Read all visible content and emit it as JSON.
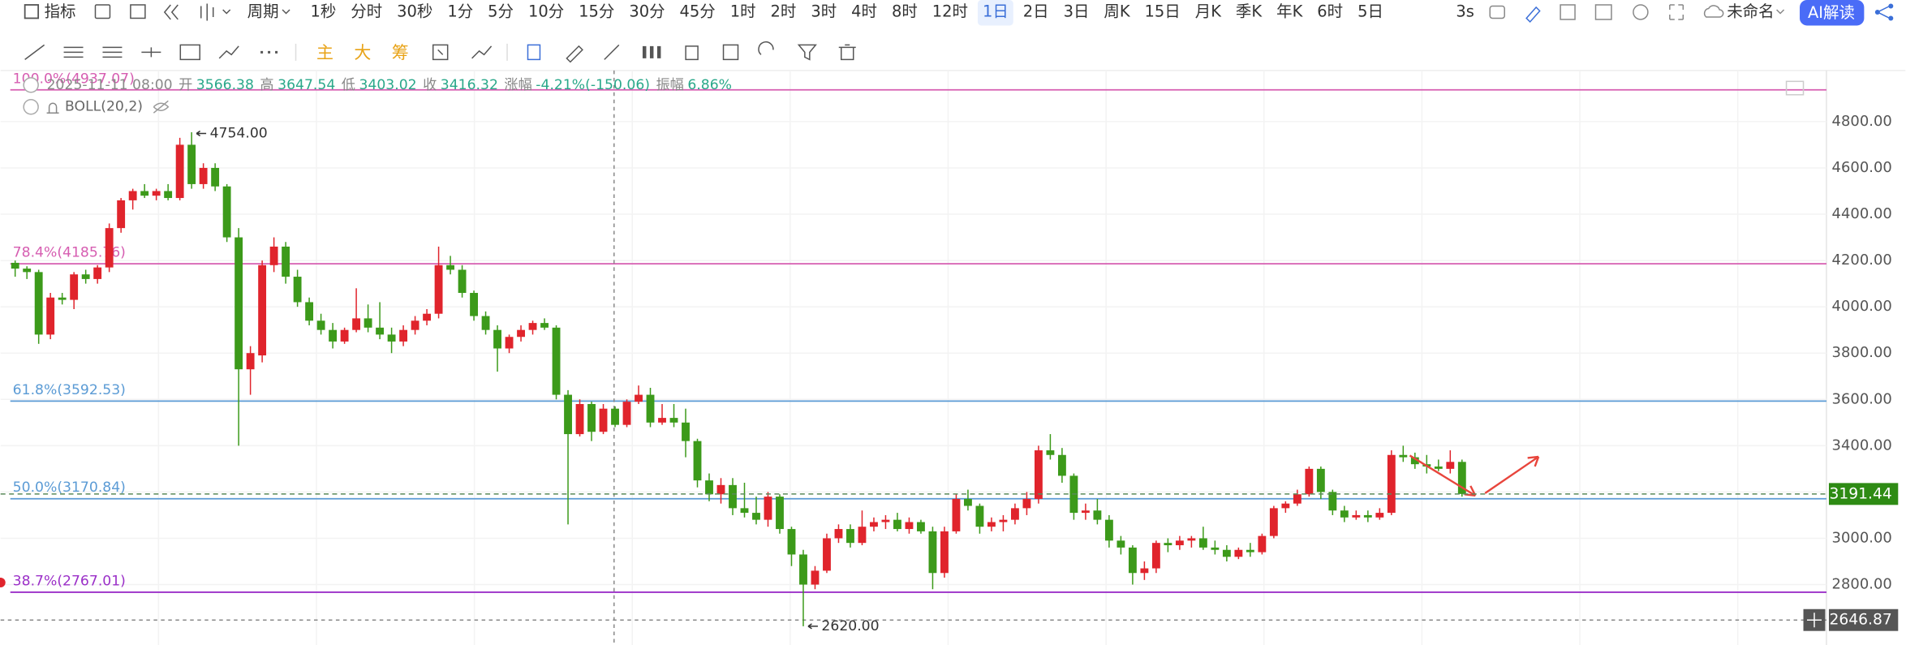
{
  "toolbar": {
    "indicators": "指标",
    "period": "周期",
    "intervals": [
      "1秒",
      "分时",
      "30秒",
      "1分",
      "5分",
      "10分",
      "15分",
      "30分",
      "45分",
      "1时",
      "2时",
      "3时",
      "4时",
      "8时",
      "12时",
      "1日",
      "2日",
      "3日",
      "周K",
      "15日",
      "月K",
      "季K",
      "年K",
      "6时",
      "5日"
    ],
    "active": "1日",
    "refresh": "3s",
    "layout_name": "未命名",
    "ai_button": "AI解读",
    "overlays": [
      "主",
      "大",
      "筹"
    ]
  },
  "chart_data": {
    "type": "candlestick",
    "ylim": [
      2560,
      5000
    ],
    "yticks": [
      {
        "value": 2800,
        "label": "2800.00"
      },
      {
        "value": 3000,
        "label": "3000.00"
      },
      {
        "value": 3200,
        "label": "3200.00"
      },
      {
        "value": 3400,
        "label": "3400.00"
      },
      {
        "value": 3600,
        "label": "3600.00"
      },
      {
        "value": 3800,
        "label": "3800.00"
      },
      {
        "value": 4000,
        "label": "4000.00"
      },
      {
        "value": 4200,
        "label": "4200.00"
      },
      {
        "value": 4400,
        "label": "4400.00"
      },
      {
        "value": 4600,
        "label": "4600.00"
      },
      {
        "value": 4800,
        "label": "4800.00"
      }
    ],
    "grid": true,
    "up_color": "#e0242c",
    "down_color": "#3c9a1a",
    "info": {
      "datetime": "2025-11-11 08:00",
      "fields": [
        {
          "label": "开",
          "value": "3566.38"
        },
        {
          "label": "高",
          "value": "3647.54"
        },
        {
          "label": "低",
          "value": "3403.02"
        },
        {
          "label": "收",
          "value": "3416.32"
        },
        {
          "label": "涨幅",
          "value": "-4.21%(-150.06)"
        },
        {
          "label": "振幅",
          "value": "6.86%"
        }
      ]
    },
    "indicator": "BOLL(20,2)",
    "fib_levels": [
      {
        "value": 4937.07,
        "label": "100.0%(4937.07)",
        "color": "#d65db1"
      },
      {
        "value": 4185.76,
        "label": "78.4%(4185.76)",
        "color": "#d65db1"
      },
      {
        "value": 3592.53,
        "label": "61.8%(3592.53)",
        "color": "#5b9bd5"
      },
      {
        "value": 3170.84,
        "label": "50.0%(3170.84)",
        "color": "#5b9bd5"
      },
      {
        "value": 2767.01,
        "label": "38.7%(2767.01)",
        "color": "#9b30c8"
      }
    ],
    "high_marker": {
      "value": 4754,
      "label": "4754.00"
    },
    "low_marker": {
      "value": 2620,
      "label": "2620.00"
    },
    "last_price": {
      "value": 3191.44,
      "label": "3191.44"
    },
    "crosshair_price": {
      "value": 2646.87,
      "label": "2646.87"
    },
    "ohlc": [
      [
        4190,
        4200,
        4130,
        4165
      ],
      [
        4165,
        4175,
        4120,
        4150
      ],
      [
        4150,
        4160,
        3840,
        3880
      ],
      [
        3880,
        4060,
        3860,
        4040
      ],
      [
        4040,
        4060,
        4010,
        4030
      ],
      [
        4030,
        4150,
        3990,
        4140
      ],
      [
        4140,
        4160,
        4100,
        4120
      ],
      [
        4120,
        4180,
        4100,
        4170
      ],
      [
        4170,
        4360,
        4150,
        4340
      ],
      [
        4340,
        4470,
        4320,
        4460
      ],
      [
        4460,
        4510,
        4420,
        4500
      ],
      [
        4500,
        4530,
        4470,
        4480
      ],
      [
        4480,
        4510,
        4460,
        4500
      ],
      [
        4500,
        4530,
        4460,
        4470
      ],
      [
        4470,
        4730,
        4460,
        4700
      ],
      [
        4700,
        4754,
        4510,
        4530
      ],
      [
        4530,
        4620,
        4510,
        4600
      ],
      [
        4600,
        4620,
        4500,
        4520
      ],
      [
        4520,
        4530,
        4280,
        4300
      ],
      [
        4300,
        4340,
        3400,
        3730
      ],
      [
        3730,
        3830,
        3620,
        3800
      ],
      [
        3790,
        4200,
        3760,
        4180
      ],
      [
        4180,
        4300,
        4150,
        4260
      ],
      [
        4260,
        4280,
        4100,
        4130
      ],
      [
        4130,
        4160,
        4000,
        4020
      ],
      [
        4020,
        4040,
        3920,
        3940
      ],
      [
        3940,
        3970,
        3880,
        3900
      ],
      [
        3900,
        3930,
        3820,
        3850
      ],
      [
        3850,
        3910,
        3840,
        3900
      ],
      [
        3900,
        4080,
        3890,
        3950
      ],
      [
        3950,
        4010,
        3890,
        3910
      ],
      [
        3910,
        4020,
        3860,
        3880
      ],
      [
        3880,
        3910,
        3800,
        3850
      ],
      [
        3850,
        3920,
        3830,
        3900
      ],
      [
        3900,
        3960,
        3880,
        3940
      ],
      [
        3940,
        3990,
        3920,
        3970
      ],
      [
        3970,
        4260,
        3950,
        4180
      ],
      [
        4180,
        4220,
        4140,
        4160
      ],
      [
        4160,
        4180,
        4040,
        4060
      ],
      [
        4060,
        4070,
        3940,
        3960
      ],
      [
        3960,
        3980,
        3880,
        3900
      ],
      [
        3900,
        3920,
        3720,
        3820
      ],
      [
        3820,
        3880,
        3800,
        3870
      ],
      [
        3870,
        3920,
        3850,
        3900
      ],
      [
        3900,
        3940,
        3880,
        3930
      ],
      [
        3930,
        3950,
        3900,
        3910
      ],
      [
        3910,
        3920,
        3600,
        3620
      ],
      [
        3620,
        3640,
        3060,
        3450
      ],
      [
        3450,
        3600,
        3440,
        3580
      ],
      [
        3580,
        3590,
        3420,
        3460
      ],
      [
        3460,
        3580,
        3450,
        3560
      ],
      [
        3560,
        3570,
        3480,
        3490
      ],
      [
        3490,
        3600,
        3480,
        3590
      ],
      [
        3590,
        3660,
        3580,
        3620
      ],
      [
        3620,
        3650,
        3480,
        3500
      ],
      [
        3500,
        3580,
        3490,
        3520
      ],
      [
        3520,
        3580,
        3480,
        3500
      ],
      [
        3500,
        3560,
        3350,
        3420
      ],
      [
        3420,
        3430,
        3220,
        3250
      ],
      [
        3250,
        3280,
        3160,
        3190
      ],
      [
        3190,
        3260,
        3150,
        3230
      ],
      [
        3230,
        3260,
        3100,
        3130
      ],
      [
        3130,
        3240,
        3090,
        3110
      ],
      [
        3110,
        3180,
        3060,
        3080
      ],
      [
        3080,
        3200,
        3050,
        3180
      ],
      [
        3180,
        3190,
        3020,
        3040
      ],
      [
        3040,
        3050,
        2880,
        2930
      ],
      [
        2930,
        2950,
        2620,
        2800
      ],
      [
        2800,
        2880,
        2780,
        2860
      ],
      [
        2860,
        3020,
        2850,
        3000
      ],
      [
        3000,
        3060,
        2980,
        3040
      ],
      [
        3040,
        3060,
        2960,
        2980
      ],
      [
        2980,
        3120,
        2970,
        3050
      ],
      [
        3050,
        3090,
        3030,
        3070
      ],
      [
        3070,
        3100,
        3040,
        3080
      ],
      [
        3080,
        3110,
        3030,
        3040
      ],
      [
        3040,
        3090,
        3020,
        3070
      ],
      [
        3070,
        3080,
        3020,
        3030
      ],
      [
        3030,
        3050,
        2780,
        2850
      ],
      [
        2850,
        3050,
        2830,
        3030
      ],
      [
        3030,
        3190,
        3020,
        3170
      ],
      [
        3170,
        3210,
        3120,
        3140
      ],
      [
        3140,
        3150,
        3020,
        3050
      ],
      [
        3050,
        3090,
        3030,
        3070
      ],
      [
        3070,
        3100,
        3030,
        3080
      ],
      [
        3080,
        3150,
        3060,
        3130
      ],
      [
        3130,
        3200,
        3100,
        3170
      ],
      [
        3170,
        3400,
        3150,
        3380
      ],
      [
        3380,
        3450,
        3340,
        3360
      ],
      [
        3360,
        3390,
        3240,
        3270
      ],
      [
        3270,
        3280,
        3080,
        3110
      ],
      [
        3110,
        3150,
        3080,
        3120
      ],
      [
        3120,
        3170,
        3060,
        3080
      ],
      [
        3080,
        3100,
        2960,
        2990
      ],
      [
        2990,
        3010,
        2930,
        2960
      ],
      [
        2960,
        2970,
        2800,
        2850
      ],
      [
        2850,
        2900,
        2820,
        2870
      ],
      [
        2870,
        2990,
        2850,
        2980
      ],
      [
        2980,
        3000,
        2940,
        2970
      ],
      [
        2970,
        3010,
        2950,
        2990
      ],
      [
        2990,
        3010,
        2960,
        3000
      ],
      [
        3000,
        3050,
        2950,
        2960
      ],
      [
        2960,
        2990,
        2930,
        2950
      ],
      [
        2950,
        2970,
        2900,
        2920
      ],
      [
        2920,
        2960,
        2910,
        2950
      ],
      [
        2950,
        2980,
        2920,
        2940
      ],
      [
        2940,
        3020,
        2930,
        3010
      ],
      [
        3010,
        3140,
        3000,
        3130
      ],
      [
        3130,
        3160,
        3110,
        3150
      ],
      [
        3150,
        3210,
        3140,
        3190
      ],
      [
        3190,
        3310,
        3180,
        3300
      ],
      [
        3300,
        3310,
        3170,
        3200
      ],
      [
        3200,
        3210,
        3100,
        3120
      ],
      [
        3120,
        3140,
        3070,
        3090
      ],
      [
        3090,
        3120,
        3080,
        3100
      ],
      [
        3100,
        3120,
        3070,
        3090
      ],
      [
        3090,
        3130,
        3080,
        3110
      ],
      [
        3110,
        3380,
        3100,
        3360
      ],
      [
        3360,
        3400,
        3330,
        3350
      ],
      [
        3350,
        3370,
        3300,
        3320
      ],
      [
        3320,
        3360,
        3280,
        3310
      ],
      [
        3310,
        3340,
        3290,
        3300
      ],
      [
        3300,
        3380,
        3280,
        3330
      ],
      [
        3330,
        3340,
        3180,
        3191.44
      ]
    ]
  }
}
